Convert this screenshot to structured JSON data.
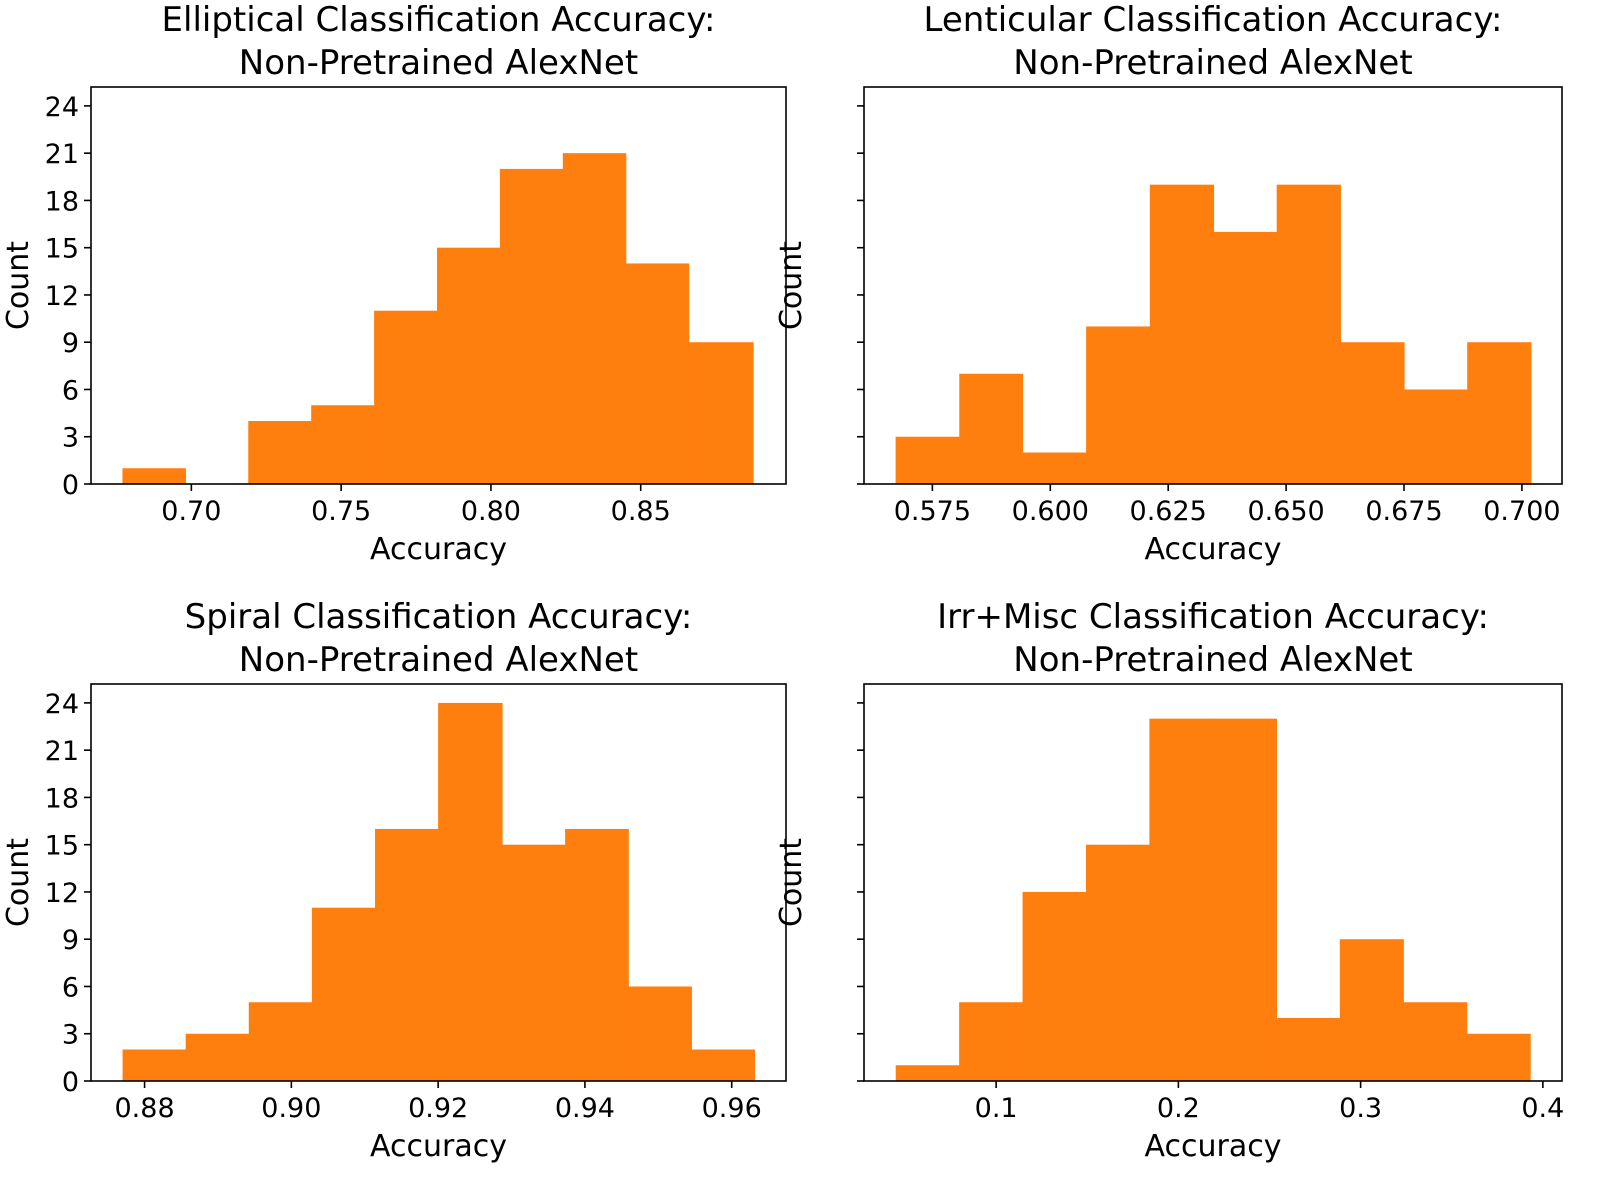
{
  "figure": {
    "bar_color": "#ff7f0e",
    "axis_color": "#000000"
  },
  "chart_data": [
    {
      "type": "bar",
      "title_line1": "Elliptical Classification Accuracy:",
      "title_line2": "Non-Pretrained AlexNet",
      "xlabel": "Accuracy",
      "ylabel": "Count",
      "xlim": [
        0.6665,
        0.8985
      ],
      "ylim": [
        0,
        25.2
      ],
      "xticks": [
        0.7,
        0.75,
        0.8,
        0.85
      ],
      "xtick_labels": [
        "0.70",
        "0.75",
        "0.80",
        "0.85"
      ],
      "yticks": [
        0,
        3,
        6,
        9,
        12,
        15,
        18,
        21,
        24
      ],
      "ytick_labels": [
        "0",
        "3",
        "6",
        "9",
        "12",
        "15",
        "18",
        "21",
        "24"
      ],
      "show_ytick_labels": true,
      "bin_edges": [
        0.677,
        0.698,
        0.719,
        0.74,
        0.761,
        0.782,
        0.803,
        0.824,
        0.845,
        0.866,
        0.8875
      ],
      "counts": [
        1,
        0,
        4,
        5,
        11,
        15,
        20,
        21,
        14,
        9
      ]
    },
    {
      "type": "bar",
      "title_line1": "Lenticular Classification Accuracy:",
      "title_line2": "Non-Pretrained AlexNet",
      "xlabel": "Accuracy",
      "ylabel": "Count",
      "xlim": [
        0.5605,
        0.7085
      ],
      "ylim": [
        0,
        25.2
      ],
      "xticks": [
        0.575,
        0.6,
        0.625,
        0.65,
        0.675,
        0.7
      ],
      "xtick_labels": [
        "0.575",
        "0.600",
        "0.625",
        "0.650",
        "0.675",
        "0.700"
      ],
      "yticks": [
        0,
        3,
        6,
        9,
        12,
        15,
        18,
        21,
        24
      ],
      "ytick_labels": [
        "0",
        "3",
        "6",
        "9",
        "12",
        "15",
        "18",
        "21",
        "24"
      ],
      "show_ytick_labels": false,
      "bin_edges": [
        0.5672,
        0.5807,
        0.5941,
        0.6076,
        0.6211,
        0.6346,
        0.648,
        0.6615,
        0.675,
        0.6884,
        0.7019
      ],
      "counts": [
        3,
        7,
        2,
        10,
        19,
        16,
        19,
        9,
        6,
        9
      ]
    },
    {
      "type": "bar",
      "title_line1": "Spiral Classification Accuracy:",
      "title_line2": "Non-Pretrained AlexNet",
      "xlabel": "Accuracy",
      "ylabel": "Count",
      "xlim": [
        0.8727,
        0.9674
      ],
      "ylim": [
        0,
        25.2
      ],
      "xticks": [
        0.88,
        0.9,
        0.92,
        0.94,
        0.96
      ],
      "xtick_labels": [
        "0.88",
        "0.90",
        "0.92",
        "0.94",
        "0.96"
      ],
      "yticks": [
        0,
        3,
        6,
        9,
        12,
        15,
        18,
        21,
        24
      ],
      "ytick_labels": [
        "0",
        "3",
        "6",
        "9",
        "12",
        "15",
        "18",
        "21",
        "24"
      ],
      "show_ytick_labels": true,
      "bin_edges": [
        0.877,
        0.8856,
        0.8942,
        0.9028,
        0.9114,
        0.92,
        0.9287,
        0.9373,
        0.9459,
        0.9545,
        0.9631
      ],
      "counts": [
        2,
        3,
        5,
        11,
        16,
        24,
        15,
        16,
        6,
        2
      ]
    },
    {
      "type": "bar",
      "title_line1": "Irr+Misc Classification Accuracy:",
      "title_line2": "Non-Pretrained AlexNet",
      "xlabel": "Accuracy",
      "ylabel": "Count",
      "xlim": [
        0.0275,
        0.4105
      ],
      "ylim": [
        0,
        25.2
      ],
      "xticks": [
        0.1,
        0.2,
        0.3,
        0.4
      ],
      "xtick_labels": [
        "0.1",
        "0.2",
        "0.3",
        "0.4"
      ],
      "yticks": [
        0,
        3,
        6,
        9,
        12,
        15,
        18,
        21,
        24
      ],
      "ytick_labels": [
        "0",
        "3",
        "6",
        "9",
        "12",
        "15",
        "18",
        "21",
        "24"
      ],
      "show_ytick_labels": false,
      "bin_edges": [
        0.0449,
        0.0797,
        0.1145,
        0.1493,
        0.1841,
        0.219,
        0.2538,
        0.2886,
        0.3234,
        0.3582,
        0.393
      ],
      "counts": [
        1,
        5,
        12,
        15,
        23,
        23,
        4,
        9,
        5,
        3
      ]
    }
  ]
}
